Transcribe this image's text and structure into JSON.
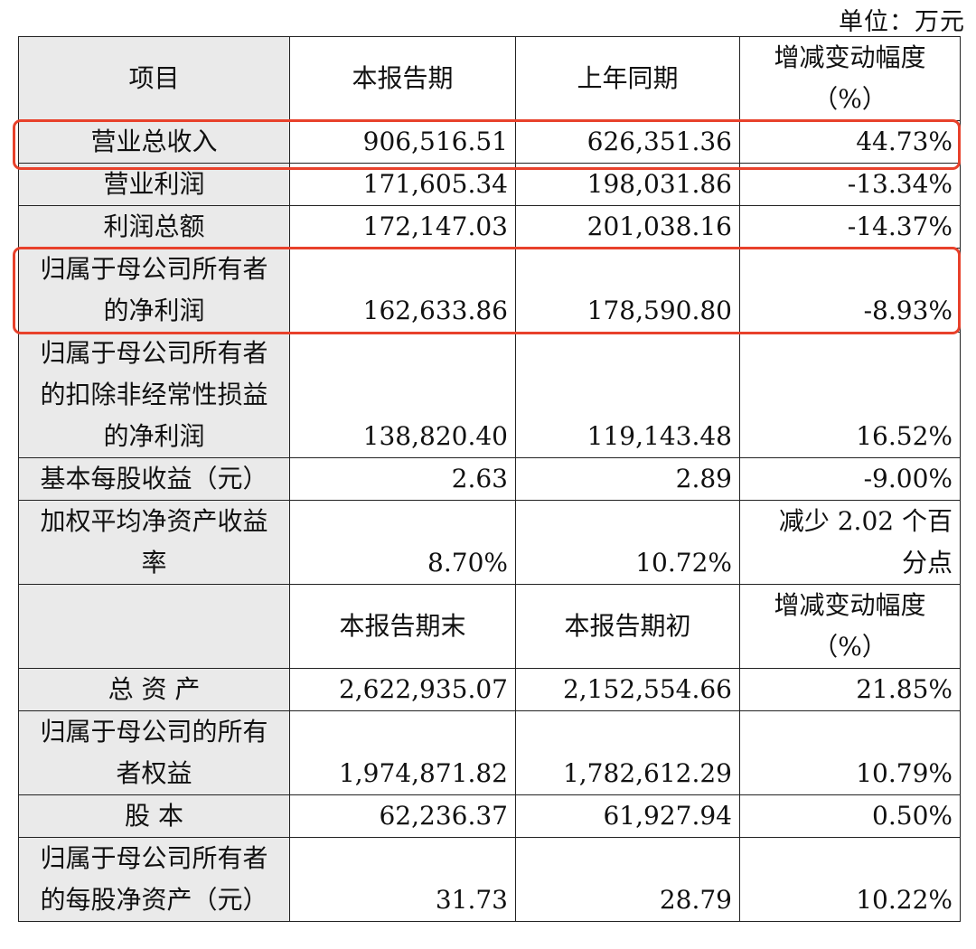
{
  "unit_label": "单位：万元",
  "highlight_color": "#e8412b",
  "header1": {
    "item": "项目",
    "col1": "本报告期",
    "col2": "上年同期",
    "col3_lines": [
      "增减变动幅度",
      "（%）"
    ]
  },
  "rows1": [
    {
      "label_lines": [
        "营业总收入"
      ],
      "v1": "906,516.51",
      "v2": "626,351.36",
      "v3_lines": [
        "44.73%"
      ]
    },
    {
      "label_lines": [
        "营业利润"
      ],
      "v1": "171,605.34",
      "v2": "198,031.86",
      "v3_lines": [
        "-13.34%"
      ]
    },
    {
      "label_lines": [
        "利润总额"
      ],
      "v1": "172,147.03",
      "v2": "201,038.16",
      "v3_lines": [
        "-14.37%"
      ]
    },
    {
      "label_lines": [
        "归属于母公司所有者",
        "的净利润"
      ],
      "v1": "162,633.86",
      "v2": "178,590.80",
      "v3_lines": [
        "-8.93%"
      ]
    },
    {
      "label_lines": [
        "归属于母公司所有者",
        "的扣除非经常性损益",
        "的净利润"
      ],
      "v1": "138,820.40",
      "v2": "119,143.48",
      "v3_lines": [
        "16.52%"
      ]
    },
    {
      "label_lines": [
        "基本每股收益（元）"
      ],
      "v1": "2.63",
      "v2": "2.89",
      "v3_lines": [
        "-9.00%"
      ]
    },
    {
      "label_lines": [
        "加权平均净资产收益",
        "率"
      ],
      "v1": "8.70%",
      "v2": "10.72%",
      "v3_lines": [
        "减少 2.02 个百",
        "分点"
      ]
    }
  ],
  "header2": {
    "col1": "本报告期末",
    "col2": "本报告期初",
    "col3_lines": [
      "增减变动幅度",
      "（%）"
    ]
  },
  "rows2": [
    {
      "label_lines": [
        "总 资 产"
      ],
      "v1": "2,622,935.07",
      "v2": "2,152,554.66",
      "v3_lines": [
        "21.85%"
      ]
    },
    {
      "label_lines": [
        "归属于母公司的所有",
        "者权益"
      ],
      "v1": "1,974,871.82",
      "v2": "1,782,612.29",
      "v3_lines": [
        "10.79%"
      ]
    },
    {
      "label_lines": [
        "股 本"
      ],
      "v1": "62,236.37",
      "v2": "61,927.94",
      "v3_lines": [
        "0.50%"
      ]
    },
    {
      "label_lines": [
        "归属于母公司所有者",
        "的每股净资产（元）"
      ],
      "v1": "31.73",
      "v2": "28.79",
      "v3_lines": [
        "10.22%"
      ]
    }
  ]
}
